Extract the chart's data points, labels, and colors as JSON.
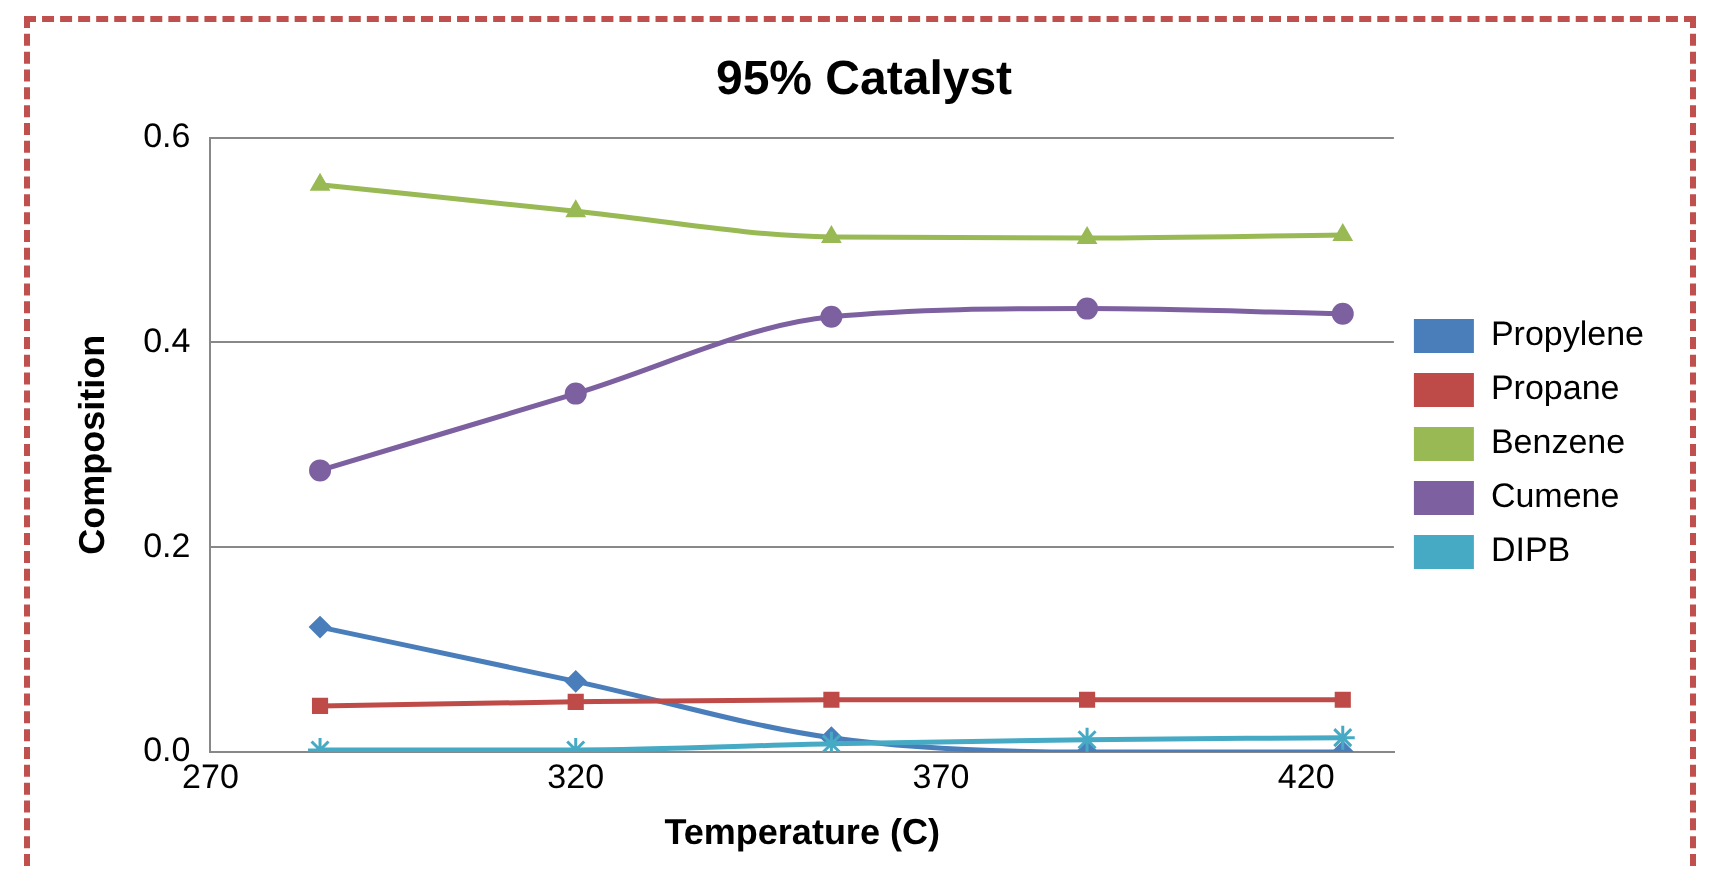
{
  "chart_data": {
    "type": "line",
    "title": "95% Catalyst",
    "xlabel": "Temperature (C)",
    "ylabel": "Composition",
    "x": [
      285,
      320,
      355,
      390,
      425
    ],
    "xlim": [
      270,
      432
    ],
    "xticks": [
      270,
      320,
      370,
      420
    ],
    "ylim": [
      0,
      0.6
    ],
    "yticks": [
      {
        "value": 0,
        "label": "0.0"
      },
      {
        "value": 0.2,
        "label": "0.2"
      },
      {
        "value": 0.4,
        "label": "0.4"
      },
      {
        "value": 0.6,
        "label": "0.6"
      }
    ],
    "grid": "y",
    "legend": "right",
    "line_style": "solid",
    "series": [
      {
        "name": "Propylene",
        "color": "#4a7ebb",
        "marker": "diamond",
        "values": [
          0.122,
          0.069,
          0.014,
          0.0,
          0.0
        ]
      },
      {
        "name": "Propane",
        "color": "#be4b48",
        "marker": "square",
        "values": [
          0.045,
          0.049,
          0.051,
          0.051,
          0.051
        ]
      },
      {
        "name": "Benzene",
        "color": "#98b954",
        "marker": "triangle",
        "values": [
          0.554,
          0.528,
          0.503,
          0.502,
          0.505
        ]
      },
      {
        "name": "Cumene",
        "color": "#7d60a0",
        "marker": "circle",
        "values": [
          0.275,
          0.35,
          0.425,
          0.433,
          0.428
        ]
      },
      {
        "name": "DIPB",
        "color": "#46aac5",
        "marker": "cross",
        "values": [
          0.002,
          0.002,
          0.008,
          0.012,
          0.014
        ]
      }
    ]
  }
}
